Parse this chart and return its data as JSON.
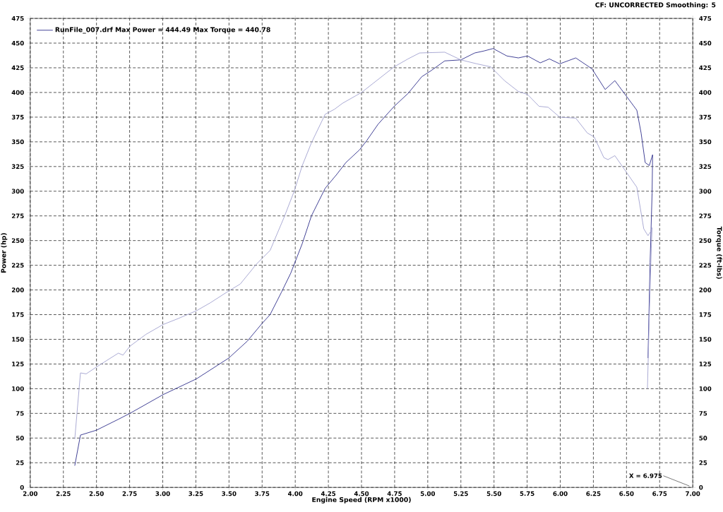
{
  "chart_data": {
    "type": "line",
    "xlabel": "Engine Speed (RPM x1000)",
    "ylabel": "Power (hp)",
    "y2label": "Torque (ft-lbs)",
    "annotations": [
      "CF: UNCORRECTED  Smoothing: 5",
      "X = 6.975"
    ],
    "xlim": [
      2,
      7
    ],
    "ylim": [
      0,
      475
    ],
    "y2lim": [
      0,
      475
    ],
    "xticks": [
      {
        "value": 2,
        "label": "2.00"
      },
      {
        "value": 2.25,
        "label": "2.25"
      },
      {
        "value": 2.5,
        "label": "2.50"
      },
      {
        "value": 2.75,
        "label": "2.75"
      },
      {
        "value": 3,
        "label": "3.00"
      },
      {
        "value": 3.25,
        "label": "3.25"
      },
      {
        "value": 3.5,
        "label": "3.50"
      },
      {
        "value": 3.75,
        "label": "3.75"
      },
      {
        "value": 4,
        "label": "4.00"
      },
      {
        "value": 4.25,
        "label": "4.25"
      },
      {
        "value": 4.5,
        "label": "4.50"
      },
      {
        "value": 4.75,
        "label": "4.75"
      },
      {
        "value": 5,
        "label": "5.00"
      },
      {
        "value": 5.25,
        "label": "5.25"
      },
      {
        "value": 5.5,
        "label": "5.50"
      },
      {
        "value": 5.75,
        "label": "5.75"
      },
      {
        "value": 6,
        "label": "6.00"
      },
      {
        "value": 6.25,
        "label": "6.25"
      },
      {
        "value": 6.5,
        "label": "6.50"
      },
      {
        "value": 6.75,
        "label": "6.75"
      },
      {
        "value": 7,
        "label": "7.00"
      }
    ],
    "yticks": [
      0,
      25,
      50,
      75,
      100,
      125,
      150,
      175,
      200,
      225,
      250,
      275,
      300,
      325,
      350,
      375,
      400,
      425,
      450,
      475
    ],
    "y2ticks": [
      0,
      25,
      50,
      75,
      100,
      125,
      150,
      175,
      200,
      225,
      250,
      275,
      300,
      325,
      350,
      375,
      400,
      425,
      450,
      475
    ],
    "grid": true,
    "legend": "top left",
    "marker": "none",
    "line_style": "solid",
    "series": [
      {
        "name": "RunFile_007.drf Max Power = 444.49   Max Torque = 440.78",
        "color": "#34348e",
        "axis": "y",
        "x": [
          2.336,
          2.379,
          2.5,
          2.665,
          2.752,
          3.003,
          3.255,
          3.498,
          3.637,
          3.749,
          3.81,
          3.897,
          3.966,
          4.053,
          4.122,
          4.226,
          4.313,
          4.382,
          4.486,
          4.538,
          4.626,
          4.747,
          4.851,
          4.955,
          5.024,
          5.128,
          5.25,
          5.354,
          5.423,
          5.493,
          5.597,
          5.684,
          5.753,
          5.849,
          5.918,
          5.996,
          6.117,
          6.239,
          6.339,
          6.412,
          6.495,
          6.578,
          6.61,
          6.641,
          6.672,
          6.697,
          6.693,
          6.678,
          6.662
        ],
        "values": [
          22,
          53,
          58,
          69,
          75,
          94,
          110,
          131,
          148,
          166,
          175,
          198,
          217,
          247,
          275,
          303,
          317,
          329,
          342,
          351,
          368,
          386,
          399,
          416,
          422,
          432,
          433,
          440,
          442,
          444.5,
          437,
          435,
          437,
          430,
          434,
          429,
          435,
          424,
          403,
          412,
          397,
          382,
          359,
          329,
          326,
          337,
          298,
          228,
          131
        ]
      },
      {
        "color": "#a4a4d0",
        "axis": "y2",
        "x": [
          2.336,
          2.379,
          2.422,
          2.5,
          2.665,
          2.7,
          2.752,
          2.873,
          3.003,
          3.116,
          3.255,
          3.359,
          3.498,
          3.585,
          3.706,
          3.81,
          3.914,
          3.992,
          4.053,
          4.122,
          4.226,
          4.296,
          4.356,
          4.5,
          4.747,
          4.851,
          4.938,
          5.128,
          5.25,
          5.371,
          5.475,
          5.579,
          5.684,
          5.753,
          5.84,
          5.909,
          5.996,
          6.117,
          6.204,
          6.256,
          6.329,
          6.36,
          6.412,
          6.495,
          6.578,
          6.63,
          6.662,
          6.682,
          6.693,
          6.687,
          6.672,
          6.658
        ],
        "values": [
          49,
          116,
          115,
          122,
          136,
          134,
          143,
          155,
          165,
          171,
          179,
          187,
          199,
          206,
          226,
          240,
          273,
          300,
          326,
          349,
          378,
          383,
          389,
          400,
          426,
          434,
          440,
          440.8,
          433,
          429,
          426,
          412,
          401,
          398,
          386,
          385,
          375,
          374,
          359,
          355,
          334,
          332,
          336,
          320,
          304,
          262,
          255,
          259,
          263,
          242,
          173,
          100
        ]
      }
    ]
  }
}
